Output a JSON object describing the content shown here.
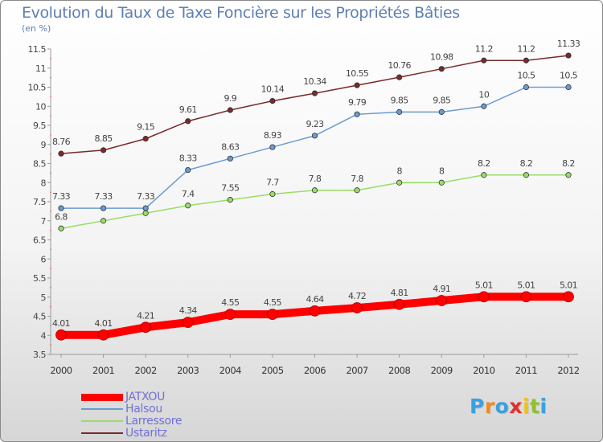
{
  "title": "Evolution du Taux de Taxe Foncière sur les Propriétés Bâties",
  "ylabel": "(en %)",
  "brand": "Proxiti",
  "chart_data": {
    "type": "line",
    "title": "Evolution du Taux de Taxe Foncière sur les Propriétés Bâties",
    "ylabel": "(en %)",
    "xlabel": "",
    "x": [
      "2000",
      "2001",
      "2002",
      "2003",
      "2004",
      "2005",
      "2006",
      "2007",
      "2008",
      "2009",
      "2010",
      "2011",
      "2012"
    ],
    "ylim": [
      3.5,
      11.5
    ],
    "yticks": [
      "3.5",
      "4",
      "4.5",
      "5",
      "5.5",
      "6",
      "6.5",
      "7",
      "7.5",
      "8",
      "8.5",
      "9",
      "9.5",
      "10",
      "10.5",
      "11",
      "11.5"
    ],
    "grid": false,
    "legend_position": "bottom-left",
    "series": [
      {
        "name": "JATXOU",
        "color": "#ff0000",
        "values": [
          4.01,
          4.01,
          4.21,
          4.34,
          4.55,
          4.55,
          4.64,
          4.72,
          4.81,
          4.91,
          5.01,
          5.01,
          5.01
        ],
        "labels": [
          "4.01",
          "4.01",
          "4.21",
          "4.34",
          "4.55",
          "4.55",
          "4.64",
          "4.72",
          "4.81",
          "4.91",
          "5.01",
          "5.01",
          "5.01"
        ]
      },
      {
        "name": "Halsou",
        "color": "#6a9cd0",
        "values": [
          7.33,
          7.33,
          7.33,
          8.33,
          8.63,
          8.93,
          9.23,
          9.79,
          9.85,
          9.85,
          10,
          10.5,
          10.5
        ],
        "labels": [
          "7.33",
          "7.33",
          "7.33",
          "8.33",
          "8.63",
          "8.93",
          "9.23",
          "9.79",
          "9.85",
          "9.85",
          "10",
          "10.5",
          "10.5"
        ]
      },
      {
        "name": "Larressore",
        "color": "#99dd66",
        "values": [
          6.8,
          7,
          7.2,
          7.4,
          7.55,
          7.7,
          7.8,
          7.8,
          8,
          8,
          8.2,
          8.2,
          8.2
        ],
        "labels": [
          "6.8",
          "",
          "",
          "7.4",
          "7.55",
          "7.7",
          "7.8",
          "7.8",
          "8",
          "8",
          "8.2",
          "8.2",
          "8.2"
        ]
      },
      {
        "name": "Ustaritz",
        "color": "#7a2a2a",
        "values": [
          8.76,
          8.85,
          9.15,
          9.61,
          9.9,
          10.14,
          10.34,
          10.55,
          10.76,
          10.98,
          11.2,
          11.2,
          11.33
        ],
        "labels": [
          "8.76",
          "8.85",
          "9.15",
          "9.61",
          "9.9",
          "10.14",
          "10.34",
          "10.55",
          "10.76",
          "10.98",
          "11.2",
          "11.2",
          "11.33"
        ]
      }
    ]
  }
}
